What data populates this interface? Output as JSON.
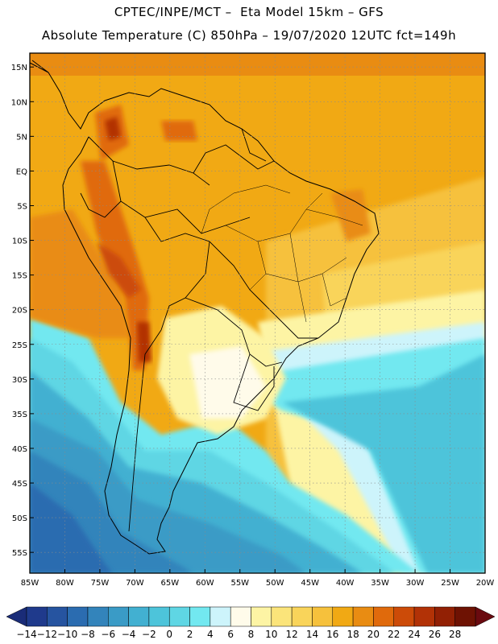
{
  "title": {
    "line1": "CPTEC/INPE/MCT –  Eta Model 15km – GFS",
    "line2": "Absolute Temperature (C) 850hPa – 19/07/2020 12UTC fct=149h"
  },
  "map": {
    "lat_labels": [
      "15N",
      "10N",
      "5N",
      "EQ",
      "5S",
      "10S",
      "15S",
      "20S",
      "25S",
      "30S",
      "35S",
      "40S",
      "45S",
      "50S",
      "55S"
    ],
    "lon_labels": [
      "85W",
      "80W",
      "75W",
      "70W",
      "65W",
      "60W",
      "55W",
      "50W",
      "45W",
      "40W",
      "35W",
      "30W",
      "25W",
      "20W"
    ],
    "lon_range": [
      -85,
      -20
    ],
    "lat_range": [
      -58,
      17
    ]
  },
  "colorbar": {
    "tick_labels": [
      "-14",
      "-12",
      "-10",
      "-8",
      "-6",
      "-4",
      "-2",
      "0",
      "2",
      "4",
      "6",
      "8",
      "10",
      "12",
      "14",
      "16",
      "18",
      "20",
      "22",
      "24",
      "26",
      "28"
    ],
    "colors": [
      "#1f3a8c",
      "#2654a0",
      "#2b6cb0",
      "#3384bb",
      "#3a9bc6",
      "#42b0d1",
      "#4dc4da",
      "#5fd6e4",
      "#72e8f0",
      "#cdf4fb",
      "#fffbea",
      "#fdf4a4",
      "#fbe47a",
      "#f9d45a",
      "#f6c13c",
      "#f1a914",
      "#e98c12",
      "#e06a0c",
      "#cc4b08",
      "#b23206",
      "#922004",
      "#6e1203"
    ],
    "under_color": "#1a2c78",
    "over_color": "#6a0a0f"
  }
}
